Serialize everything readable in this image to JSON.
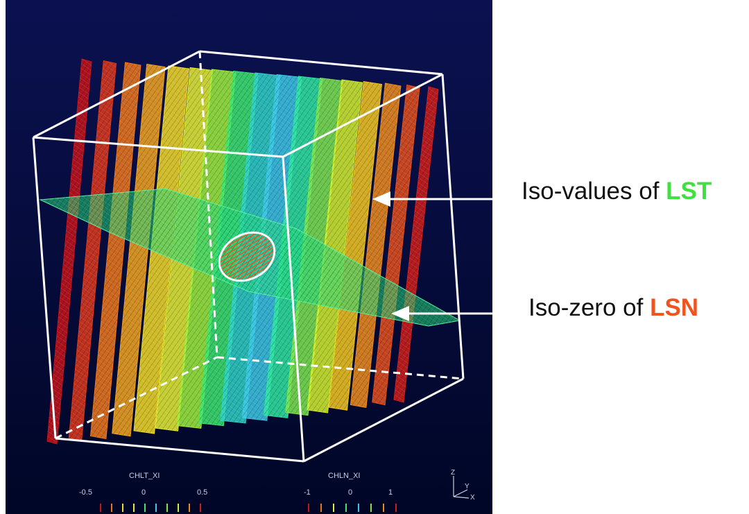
{
  "annotations": {
    "lst": {
      "prefix": "Iso-values of ",
      "highlight": "LST",
      "highlight_color": "#3fe03f"
    },
    "lsn": {
      "prefix": "Iso-zero of ",
      "highlight": "LSN",
      "highlight_color": "#f0531e"
    }
  },
  "viewport": {
    "background_top": "#0b1150",
    "background_bottom": "#000626",
    "box_color": "#ffffff"
  },
  "legend_lt": {
    "title": "CHLT_XI",
    "ticks": [
      "-0.5",
      "0",
      "0.5"
    ]
  },
  "legend_ln": {
    "title": "CHLN_XI",
    "ticks": [
      "-1",
      "0",
      "1"
    ]
  },
  "axes_triad": {
    "labels": [
      "Z",
      "Y",
      "X"
    ]
  },
  "band_colors": [
    "#c8141a",
    "#e0381c",
    "#f0781c",
    "#f5a51e",
    "#f5dc28",
    "#e6f032",
    "#9ef03c",
    "#3ce66e",
    "#2ed2c8",
    "#3cc8e6",
    "#2ee6a0",
    "#7de650",
    "#d2f02d",
    "#f5c81e",
    "#f08c1c",
    "#e6501c",
    "#d21e1a"
  ],
  "arrow_color": "#ffffff"
}
